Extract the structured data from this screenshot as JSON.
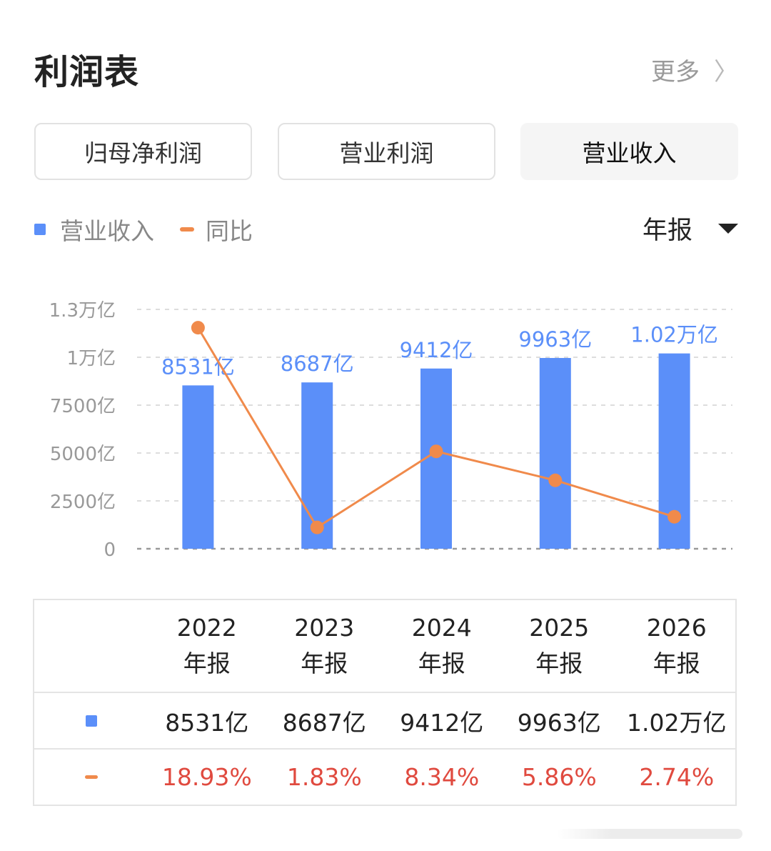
{
  "header": {
    "title": "利润表",
    "more_label": "更多",
    "more_chevron": "〉"
  },
  "tabs": [
    {
      "label": "归母净利润",
      "active": false
    },
    {
      "label": "营业利润",
      "active": false
    },
    {
      "label": "营业收入",
      "active": true
    }
  ],
  "legend": {
    "bar_label": "营业收入",
    "line_label": "同比"
  },
  "period_selector": {
    "value": "年报"
  },
  "colors": {
    "bar": "#5b8ff9",
    "line": "#f08a4b",
    "bar_label": "#5b8ff9",
    "pct_text": "#e04a3f",
    "grid": "#dddddd"
  },
  "chart_data": {
    "type": "bar",
    "categories": [
      "2022",
      "2023",
      "2024",
      "2025",
      "2026"
    ],
    "series": [
      {
        "name": "营业收入",
        "type": "bar",
        "values": [
          8531,
          8687,
          9412,
          9963,
          10200
        ],
        "data_labels": [
          "8531亿",
          "8687亿",
          "9412亿",
          "9963亿",
          "1.02万亿"
        ]
      },
      {
        "name": "同比",
        "type": "line",
        "values": [
          18.93,
          1.83,
          8.34,
          5.86,
          2.74
        ]
      }
    ],
    "y_ticks": [
      {
        "value": 0,
        "label": "0"
      },
      {
        "value": 2500,
        "label": "2500亿"
      },
      {
        "value": 5000,
        "label": "5000亿"
      },
      {
        "value": 7500,
        "label": "7500亿"
      },
      {
        "value": 10000,
        "label": "1万亿"
      },
      {
        "value": 12500,
        "label": "1.3万亿"
      }
    ],
    "ylim": [
      0,
      12500
    ],
    "y2lim": [
      0,
      20.5
    ],
    "grid": true
  },
  "table": {
    "columns": [
      {
        "year": "2022",
        "period": "年报"
      },
      {
        "year": "2023",
        "period": "年报"
      },
      {
        "year": "2024",
        "period": "年报"
      },
      {
        "year": "2025",
        "period": "年报"
      },
      {
        "year": "2026",
        "period": "年报"
      }
    ],
    "revenue_row": [
      "8531亿",
      "8687亿",
      "9412亿",
      "9963亿",
      "1.02万亿"
    ],
    "yoy_row": [
      "18.93%",
      "1.83%",
      "8.34%",
      "5.86%",
      "2.74%"
    ]
  }
}
